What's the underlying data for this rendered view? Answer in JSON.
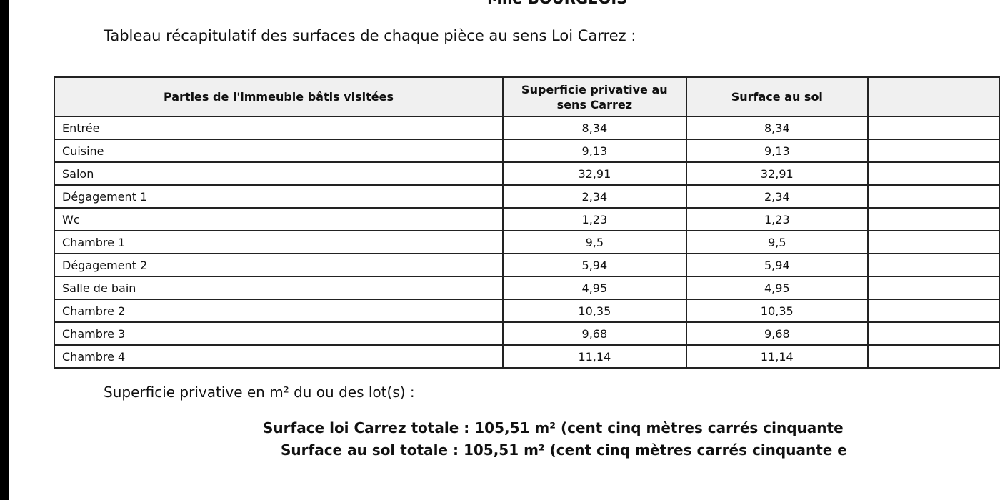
{
  "owner": "Mlle BOURGEOIS",
  "intro": "Tableau récapitulatif des surfaces de chaque pièce au sens Loi Carrez :",
  "table": {
    "headers": [
      "Parties de l'immeuble bâtis visitées",
      "Superficie privative au sens Carrez",
      "Surface au sol",
      ""
    ],
    "rows": [
      [
        "Entrée",
        "8,34",
        "8,34"
      ],
      [
        "Cuisine",
        "9,13",
        "9,13"
      ],
      [
        "Salon",
        "32,91",
        "32,91"
      ],
      [
        "Dégagement 1",
        "2,34",
        "2,34"
      ],
      [
        "Wc",
        "1,23",
        "1,23"
      ],
      [
        "Chambre 1",
        "9,5",
        "9,5"
      ],
      [
        "Dégagement 2",
        "5,94",
        "5,94"
      ],
      [
        "Salle de bain",
        "4,95",
        "4,95"
      ],
      [
        "Chambre 2",
        "10,35",
        "10,35"
      ],
      [
        "Chambre 3",
        "9,68",
        "9,68"
      ],
      [
        "Chambre 4",
        "11,14",
        "11,14"
      ]
    ]
  },
  "summary_label": "Superficie privative en m² du ou des lot(s) :",
  "total_carrez": "Surface loi Carrez totale : 105,51 m² (cent cinq mètres carrés cinquante",
  "total_sol": "Surface au sol totale : 105,51 m² (cent cinq mètres carrés cinquante e"
}
